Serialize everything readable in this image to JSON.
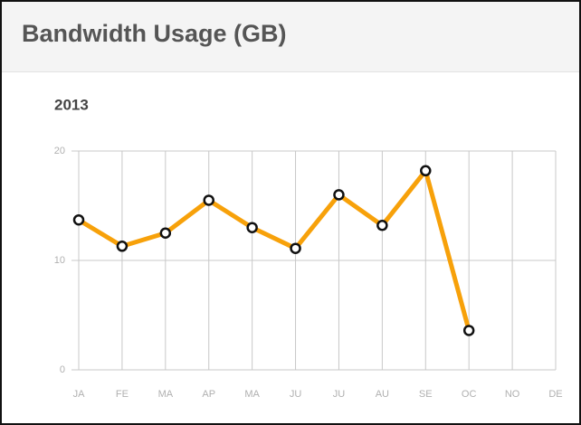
{
  "chart_data": {
    "type": "line",
    "title": "Bandwidth Usage (GB)",
    "subtitle": "2013",
    "categories": [
      "JA",
      "FE",
      "MA",
      "AP",
      "MA",
      "JU",
      "JU",
      "AU",
      "SE",
      "OC",
      "NO",
      "DE"
    ],
    "series": [
      {
        "name": "Bandwidth",
        "color": "#f7a10a",
        "values": [
          13.7,
          11.3,
          12.5,
          15.5,
          13.0,
          11.1,
          16.0,
          13.2,
          18.2,
          3.6,
          null,
          null
        ]
      }
    ],
    "ylim": [
      0,
      20
    ],
    "yticks": [
      0,
      10,
      20
    ],
    "grid": true
  }
}
